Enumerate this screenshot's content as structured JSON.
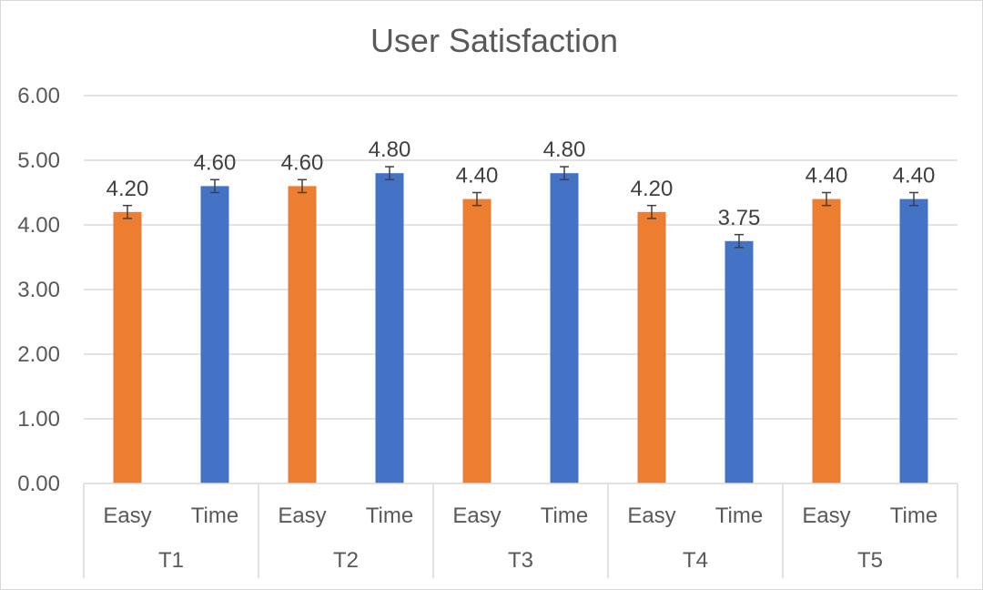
{
  "chart_data": {
    "type": "bar",
    "title": "User Satisfaction",
    "xlabel": "",
    "ylabel": "",
    "ylim": [
      0,
      6
    ],
    "yticks": [
      "0.00",
      "1.00",
      "2.00",
      "3.00",
      "4.00",
      "5.00",
      "6.00"
    ],
    "grid": true,
    "legend": "none",
    "groups": [
      "T1",
      "T2",
      "T3",
      "T4",
      "T5"
    ],
    "subcategories": [
      "Easy",
      "Time"
    ],
    "colors": {
      "Easy": "#ED7D31",
      "Time": "#4472C4",
      "grid": "#d9d9d9",
      "error_bar": "#404040"
    },
    "values": [
      [
        4.2,
        4.6
      ],
      [
        4.6,
        4.8
      ],
      [
        4.4,
        4.8
      ],
      [
        4.2,
        3.75
      ],
      [
        4.4,
        4.4
      ]
    ],
    "data_labels": [
      [
        "4.20",
        "4.60"
      ],
      [
        "4.60",
        "4.80"
      ],
      [
        "4.40",
        "4.80"
      ],
      [
        "4.20",
        "3.75"
      ],
      [
        "4.40",
        "4.40"
      ]
    ],
    "error": 0.1
  }
}
